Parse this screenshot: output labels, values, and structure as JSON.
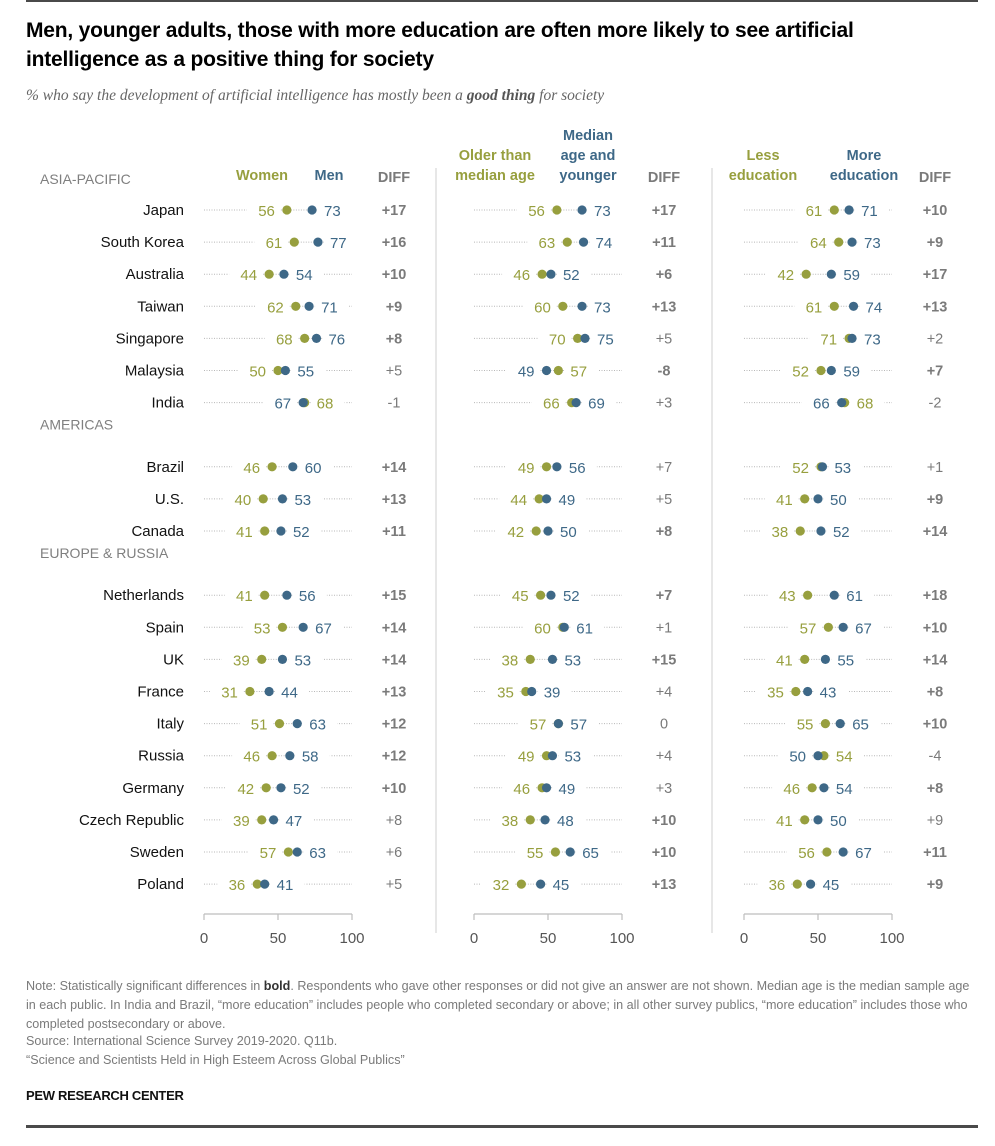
{
  "title": "Men, younger adults, those with more education are often more likely to see artificial intelligence as a positive thing for society",
  "subtitle_pre": "% who say the development of artificial intelligence has mostly been a ",
  "subtitle_bold": "good thing",
  "subtitle_post": " for society",
  "colors": {
    "green": "#979f3e",
    "blue": "#3e6887",
    "diff": "#7a7a7a",
    "axis": "#bdbdbd",
    "dotline": "#b8b8b8",
    "region": "#7f7f7f"
  },
  "note_pre": "Note: Statistically significant differences in ",
  "note_bold": "bold",
  "note_post": ". Respondents who gave other responses or did not give an answer are not shown. Median age is the median sample age in each public. In India and Brazil, “more education” includes people who completed secondary or above; in all other survey publics, “more education” includes those who completed postsecondary or above.",
  "source": "Source: International Science Survey 2019-2020. Q11b.",
  "report": "“Science and Scientists Held in High Esteem Across Global Publics”",
  "brand": "PEW RESEARCH CENTER",
  "chart_data": {
    "type": "scatter",
    "subtype": "dot-plot",
    "title": "Men, younger adults, those with more education are often more likely to see artificial intelligence as a positive thing for society",
    "subtitle": "% who say the development of artificial intelligence has mostly been a good thing for society",
    "xlim": [
      0,
      100
    ],
    "xticks": [
      "0",
      "50",
      "100"
    ],
    "grid": false,
    "panels": [
      {
        "name": "gender",
        "green_label": "Women",
        "blue_label": "Men",
        "diff_label": "DIFF"
      },
      {
        "name": "age",
        "green_label": "Older than median age",
        "blue_label": "Median age and younger",
        "diff_label": "DIFF"
      },
      {
        "name": "education",
        "green_label": "Less education",
        "blue_label": "More education",
        "diff_label": "DIFF"
      }
    ],
    "regions": [
      {
        "name": "ASIA-PACIFIC",
        "countries": [
          {
            "country": "Japan",
            "values": [
              [
                56,
                73,
                "+17",
                true
              ],
              [
                56,
                73,
                "+17",
                true
              ],
              [
                61,
                71,
                "+10",
                true
              ]
            ]
          },
          {
            "country": "South Korea",
            "values": [
              [
                61,
                77,
                "+16",
                true
              ],
              [
                63,
                74,
                "+11",
                true
              ],
              [
                64,
                73,
                "+9",
                true
              ]
            ]
          },
          {
            "country": "Australia",
            "values": [
              [
                44,
                54,
                "+10",
                true
              ],
              [
                46,
                52,
                "+6",
                true
              ],
              [
                42,
                59,
                "+17",
                true
              ]
            ]
          },
          {
            "country": "Taiwan",
            "values": [
              [
                62,
                71,
                "+9",
                true
              ],
              [
                60,
                73,
                "+13",
                true
              ],
              [
                61,
                74,
                "+13",
                true
              ]
            ]
          },
          {
            "country": "Singapore",
            "values": [
              [
                68,
                76,
                "+8",
                true
              ],
              [
                70,
                75,
                "+5",
                false
              ],
              [
                71,
                73,
                "+2",
                false
              ]
            ]
          },
          {
            "country": "Malaysia",
            "values": [
              [
                50,
                55,
                "+5",
                false
              ],
              [
                57,
                49,
                "-8",
                true
              ],
              [
                52,
                59,
                "+7",
                true
              ]
            ]
          },
          {
            "country": "India",
            "values": [
              [
                68,
                67,
                "-1",
                false
              ],
              [
                66,
                69,
                "+3",
                false
              ],
              [
                68,
                66,
                "-2",
                false
              ]
            ]
          }
        ]
      },
      {
        "name": "AMERICAS",
        "countries": [
          {
            "country": "Brazil",
            "values": [
              [
                46,
                60,
                "+14",
                true
              ],
              [
                49,
                56,
                "+7",
                false
              ],
              [
                52,
                53,
                "+1",
                false
              ]
            ]
          },
          {
            "country": "U.S.",
            "values": [
              [
                40,
                53,
                "+13",
                true
              ],
              [
                44,
                49,
                "+5",
                false
              ],
              [
                41,
                50,
                "+9",
                true
              ]
            ]
          },
          {
            "country": "Canada",
            "values": [
              [
                41,
                52,
                "+11",
                true
              ],
              [
                42,
                50,
                "+8",
                true
              ],
              [
                38,
                52,
                "+14",
                true
              ]
            ]
          }
        ]
      },
      {
        "name": "EUROPE & RUSSIA",
        "countries": [
          {
            "country": "Netherlands",
            "values": [
              [
                41,
                56,
                "+15",
                true
              ],
              [
                45,
                52,
                "+7",
                true
              ],
              [
                43,
                61,
                "+18",
                true
              ]
            ]
          },
          {
            "country": "Spain",
            "values": [
              [
                53,
                67,
                "+14",
                true
              ],
              [
                60,
                61,
                "+1",
                false
              ],
              [
                57,
                67,
                "+10",
                true
              ]
            ]
          },
          {
            "country": "UK",
            "values": [
              [
                39,
                53,
                "+14",
                true
              ],
              [
                38,
                53,
                "+15",
                true
              ],
              [
                41,
                55,
                "+14",
                true
              ]
            ]
          },
          {
            "country": "France",
            "values": [
              [
                31,
                44,
                "+13",
                true
              ],
              [
                35,
                39,
                "+4",
                false
              ],
              [
                35,
                43,
                "+8",
                true
              ]
            ]
          },
          {
            "country": "Italy",
            "values": [
              [
                51,
                63,
                "+12",
                true
              ],
              [
                57,
                57,
                "0",
                false
              ],
              [
                55,
                65,
                "+10",
                true
              ]
            ]
          },
          {
            "country": "Russia",
            "values": [
              [
                46,
                58,
                "+12",
                true
              ],
              [
                49,
                53,
                "+4",
                false
              ],
              [
                54,
                50,
                "-4",
                false
              ]
            ]
          },
          {
            "country": "Germany",
            "values": [
              [
                42,
                52,
                "+10",
                true
              ],
              [
                46,
                49,
                "+3",
                false
              ],
              [
                46,
                54,
                "+8",
                true
              ]
            ]
          },
          {
            "country": "Czech Republic",
            "values": [
              [
                39,
                47,
                "+8",
                false
              ],
              [
                38,
                48,
                "+10",
                true
              ],
              [
                41,
                50,
                "+9",
                false
              ]
            ]
          },
          {
            "country": "Sweden",
            "values": [
              [
                57,
                63,
                "+6",
                false
              ],
              [
                55,
                65,
                "+10",
                true
              ],
              [
                56,
                67,
                "+11",
                true
              ]
            ]
          },
          {
            "country": "Poland",
            "values": [
              [
                36,
                41,
                "+5",
                false
              ],
              [
                32,
                45,
                "+13",
                true
              ],
              [
                36,
                45,
                "+9",
                true
              ]
            ]
          }
        ]
      }
    ],
    "value_format": "[green_value, blue_value, diff_text, diff_is_significant_bold]"
  }
}
